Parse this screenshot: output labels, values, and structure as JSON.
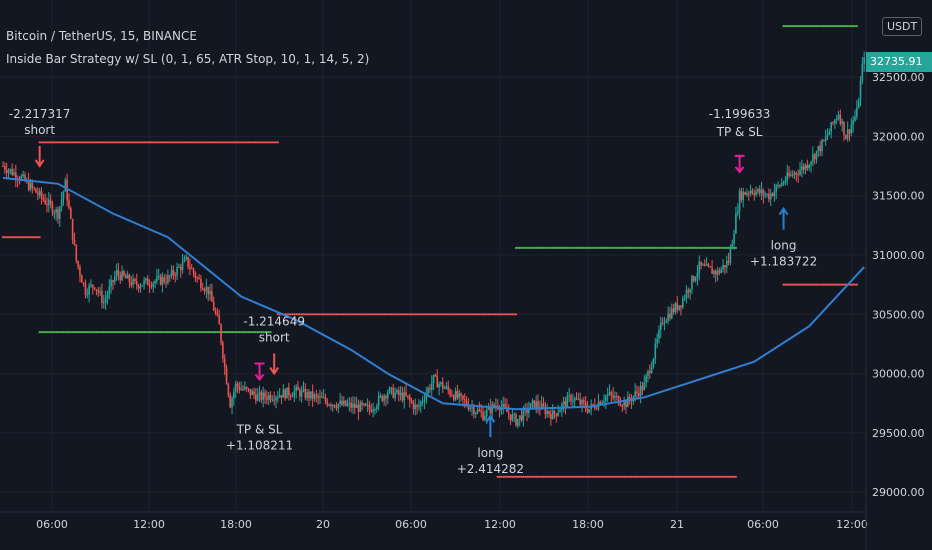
{
  "header": {
    "symbol": "Bitcoin / TetherUS, 15, BINANCE",
    "strategy": "Inside Bar Strategy w/ SL (0, 1, 65, ATR Stop, 10, 1, 14, 5, 2)",
    "currency": "USDT",
    "last_price": "32735.91"
  },
  "colors": {
    "background": "#131722",
    "grid": "#1e222d",
    "up": "#26a69a",
    "down": "#ef5350",
    "ma": "#2f7fd0",
    "long_arrow": "#2f7fd0",
    "short_arrow": "#ef5350",
    "exit_marker": "#e91e9a",
    "stop_dots_green": "#4caf50",
    "stop_dots_red": "#ef5350",
    "text": "#d1d4dc"
  },
  "chart_data": {
    "type": "candlestick",
    "title": "Bitcoin / TetherUS, 15, BINANCE",
    "x_ticks": [
      "06:00",
      "12:00",
      "18:00",
      "20",
      "06:00",
      "12:00",
      "18:00",
      "21",
      "06:00",
      "12:00"
    ],
    "y_ticks": [
      29000,
      29500,
      30000,
      30500,
      31000,
      31500,
      32000,
      32500
    ],
    "y_tick_labels": [
      "29000.00",
      "29500.00",
      "30000.00",
      "30500.00",
      "31000.00",
      "31500.00",
      "32000.00",
      "32500.00"
    ],
    "ylim": [
      28850,
      33150
    ],
    "last_price": 32735.91,
    "price_path": [
      [
        0,
        31750
      ],
      [
        10,
        31650
      ],
      [
        20,
        31500
      ],
      [
        30,
        31350
      ],
      [
        34,
        31600
      ],
      [
        40,
        30950
      ],
      [
        45,
        30700
      ],
      [
        50,
        30750
      ],
      [
        55,
        30600
      ],
      [
        62,
        30850
      ],
      [
        72,
        30750
      ],
      [
        90,
        30800
      ],
      [
        100,
        30950
      ],
      [
        106,
        30800
      ],
      [
        112,
        30700
      ],
      [
        118,
        30400
      ],
      [
        121,
        30050
      ],
      [
        124,
        29750
      ],
      [
        127,
        29900
      ],
      [
        140,
        29800
      ],
      [
        160,
        29850
      ],
      [
        180,
        29750
      ],
      [
        200,
        29700
      ],
      [
        210,
        29850
      ],
      [
        220,
        29800
      ],
      [
        226,
        29700
      ],
      [
        235,
        29950
      ],
      [
        248,
        29800
      ],
      [
        262,
        29650
      ],
      [
        270,
        29750
      ],
      [
        280,
        29600
      ],
      [
        290,
        29750
      ],
      [
        300,
        29650
      ],
      [
        310,
        29800
      ],
      [
        320,
        29700
      ],
      [
        330,
        29820
      ],
      [
        340,
        29750
      ],
      [
        350,
        29900
      ],
      [
        355,
        30150
      ],
      [
        360,
        30450
      ],
      [
        370,
        30600
      ],
      [
        380,
        30900
      ],
      [
        390,
        30850
      ],
      [
        396,
        30950
      ],
      [
        402,
        31500
      ],
      [
        408,
        31550
      ],
      [
        418,
        31500
      ],
      [
        428,
        31650
      ],
      [
        438,
        31750
      ],
      [
        448,
        31950
      ],
      [
        456,
        32200
      ],
      [
        460,
        32000
      ],
      [
        466,
        32200
      ],
      [
        470,
        32700
      ]
    ],
    "moving_average": [
      [
        0,
        31650
      ],
      [
        30,
        31600
      ],
      [
        60,
        31350
      ],
      [
        90,
        31150
      ],
      [
        118,
        30800
      ],
      [
        130,
        30650
      ],
      [
        160,
        30450
      ],
      [
        190,
        30200
      ],
      [
        210,
        30000
      ],
      [
        240,
        29750
      ],
      [
        280,
        29700
      ],
      [
        320,
        29720
      ],
      [
        350,
        29800
      ],
      [
        380,
        29950
      ],
      [
        410,
        30100
      ],
      [
        440,
        30400
      ],
      [
        470,
        30900
      ]
    ],
    "trades": [
      {
        "type": "short-entry",
        "x": 20,
        "price": 31700,
        "label_top": "-2.217317",
        "label_bottom": "short"
      },
      {
        "type": "short-entry",
        "x": 148,
        "price": 29950,
        "label_top": "-1.214649",
        "label_bottom": "short"
      },
      {
        "type": "tp-sl-exit",
        "x": 140,
        "price": 29900,
        "label_top": "TP & SL",
        "label_bottom": "+1.108211"
      },
      {
        "type": "long-entry",
        "x": 266,
        "price": 29700,
        "label_top": "long",
        "label_bottom": "+2.414282"
      },
      {
        "type": "tp-sl-exit",
        "x": 402,
        "price": 31650,
        "label_top": "-1.199633",
        "label_bottom": "TP & SL"
      },
      {
        "type": "long-entry",
        "x": 426,
        "price": 31450,
        "label_top": "long",
        "label_bottom": "+1.183722"
      }
    ],
    "stop_levels": [
      {
        "color": "red",
        "x_start": 0,
        "x_end": 20,
        "price": 31150
      },
      {
        "color": "red",
        "x_start": 20,
        "x_end": 150,
        "price": 31950
      },
      {
        "color": "green",
        "x_start": 20,
        "x_end": 146,
        "price": 30350
      },
      {
        "color": "red",
        "x_start": 150,
        "x_end": 280,
        "price": 30500
      },
      {
        "color": "red",
        "x_start": 270,
        "x_end": 400,
        "price": 29130
      },
      {
        "color": "green",
        "x_start": 280,
        "x_end": 400,
        "price": 31060
      },
      {
        "color": "red",
        "x_start": 426,
        "x_end": 466,
        "price": 30750
      },
      {
        "color": "green",
        "x_start": 426,
        "x_end": 466,
        "price": 32930
      }
    ]
  }
}
